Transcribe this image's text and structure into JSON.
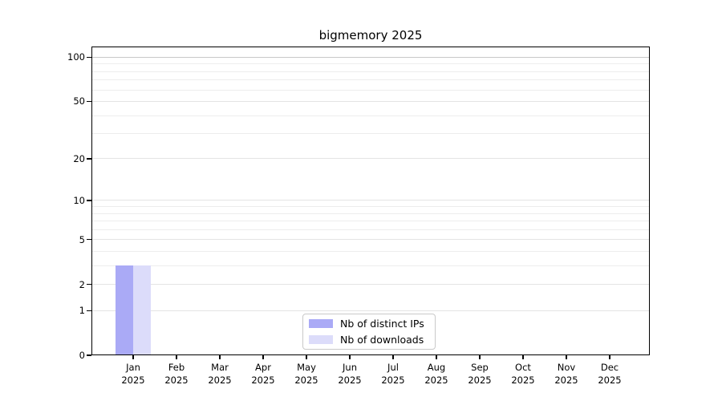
{
  "chart_data": {
    "type": "bar",
    "title": "bigmemory 2025",
    "x_tick_labels": [
      "Jan\n2025",
      "Feb\n2025",
      "Mar\n2025",
      "Apr\n2025",
      "May\n2025",
      "Jun\n2025",
      "Jul\n2025",
      "Aug\n2025",
      "Sep\n2025",
      "Oct\n2025",
      "Nov\n2025",
      "Dec\n2025"
    ],
    "categories": [
      "Jan",
      "Feb",
      "Mar",
      "Apr",
      "May",
      "Jun",
      "Jul",
      "Aug",
      "Sep",
      "Oct",
      "Nov",
      "Dec"
    ],
    "year": "2025",
    "series": [
      {
        "name": "Nb of distinct IPs",
        "color": "#aaaaf6",
        "values": [
          3,
          0,
          0,
          0,
          0,
          0,
          0,
          0,
          0,
          0,
          0,
          0
        ]
      },
      {
        "name": "Nb of downloads",
        "color": "#dcdcfa",
        "values": [
          3,
          0,
          0,
          0,
          0,
          0,
          0,
          0,
          0,
          0,
          0,
          0
        ]
      }
    ],
    "y_axis": {
      "scale": "log1p",
      "tick_values": [
        0,
        1,
        2,
        5,
        10,
        20,
        50,
        100
      ],
      "minor_grid_values": [
        3,
        4,
        6,
        7,
        8,
        9,
        30,
        40,
        60,
        70,
        80,
        90
      ],
      "ylim": [
        0,
        117
      ]
    },
    "grid": true,
    "legend_position": "lower center",
    "xlabel": "",
    "ylabel": ""
  }
}
